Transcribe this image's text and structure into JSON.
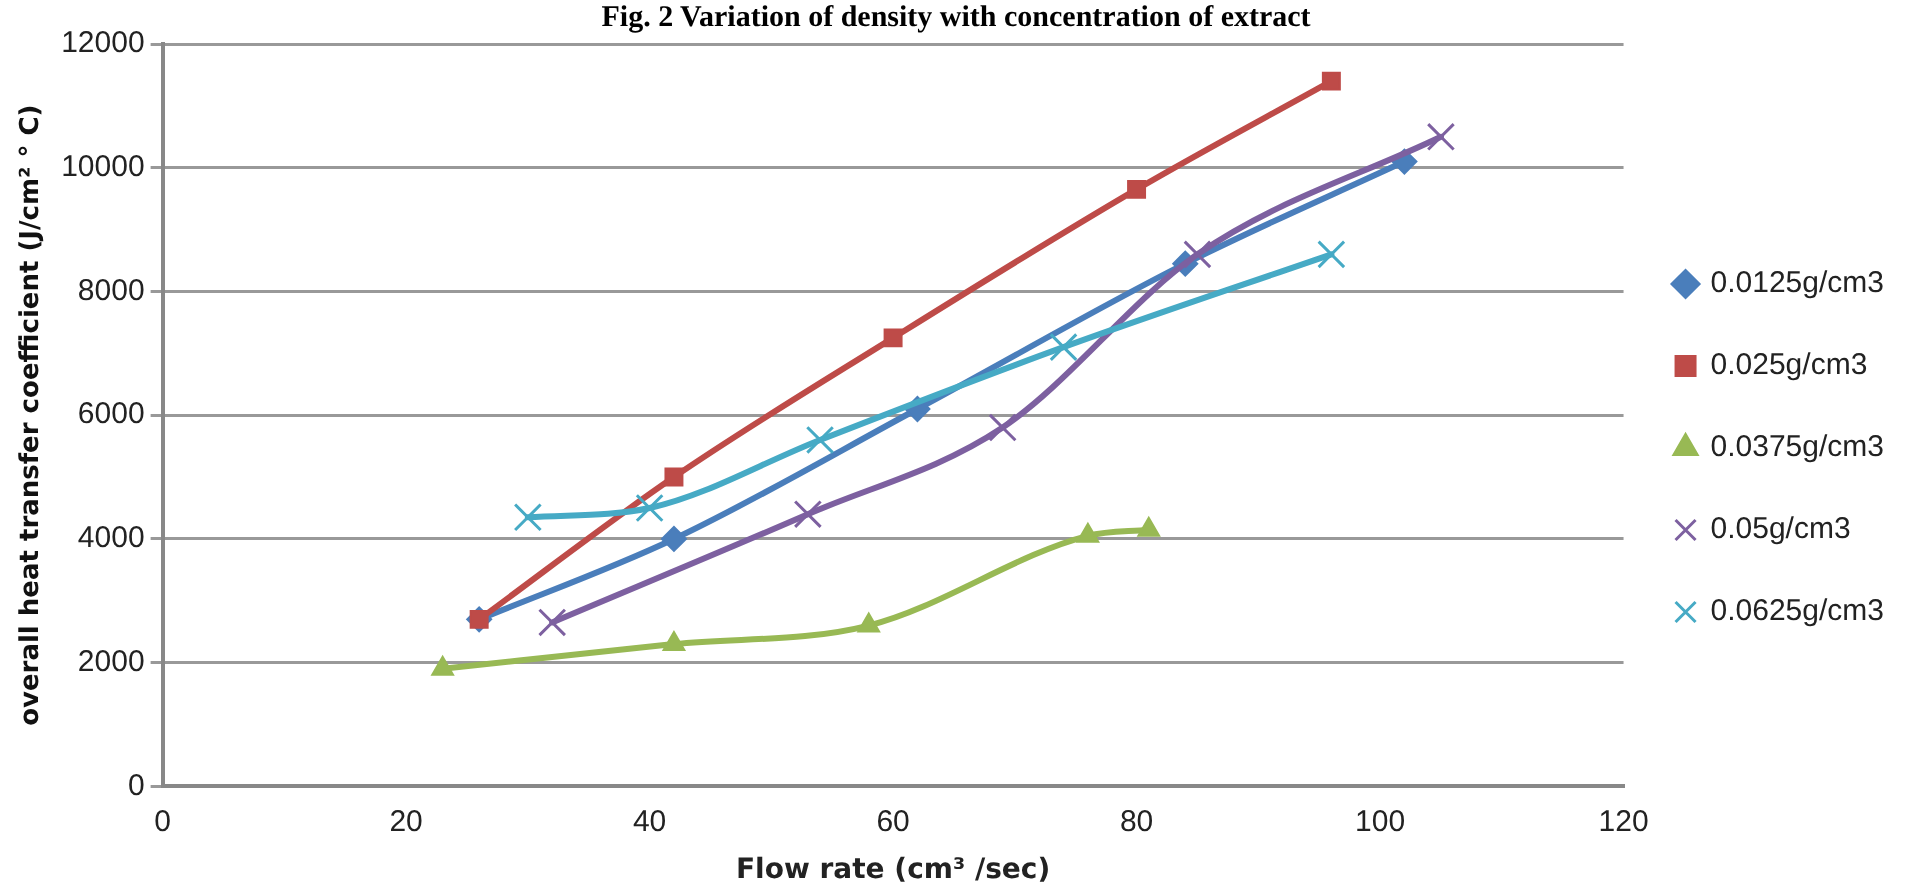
{
  "chart_data": {
    "type": "line",
    "title": "Fig. 2 Variation of density with concentration of extract",
    "xlabel": "Flow rate (cm³ /sec)",
    "ylabel": "overall heat transfer coefficient (J/cm² ° C)",
    "xlim": [
      0,
      120
    ],
    "xticks": [
      0,
      20,
      40,
      60,
      80,
      100,
      120
    ],
    "ylim": [
      0,
      12000
    ],
    "yticks": [
      0,
      2000,
      4000,
      6000,
      8000,
      10000,
      12000
    ],
    "grid": "y",
    "legend": "right",
    "line_style": "solid",
    "series": [
      {
        "name": "0.0125g/cm3",
        "color": "#4a7ebb",
        "marker": "diamond",
        "x": [
          26,
          42,
          62,
          84,
          102
        ],
        "values": [
          2700,
          4000,
          6100,
          8450,
          10100
        ]
      },
      {
        "name": "0.025g/cm3",
        "color": "#be4b48",
        "marker": "square",
        "x": [
          26,
          42,
          60,
          80,
          96
        ],
        "values": [
          2700,
          5000,
          7250,
          9650,
          11400
        ]
      },
      {
        "name": "0.0375g/cm3",
        "color": "#98b954",
        "marker": "triangle",
        "x": [
          23,
          42,
          58,
          76,
          81
        ],
        "values": [
          1900,
          2300,
          2600,
          4050,
          4150
        ]
      },
      {
        "name": "0.05g/cm3",
        "color": "#7d60a0",
        "marker": "cross",
        "x": [
          32,
          53,
          69,
          85,
          105
        ],
        "values": [
          2650,
          4400,
          5800,
          8600,
          10500
        ]
      },
      {
        "name": "0.0625g/cm3",
        "color": "#46aac5",
        "marker": "cross",
        "x": [
          30,
          40,
          54,
          74,
          96
        ],
        "values": [
          4350,
          4500,
          5600,
          7100,
          8600
        ]
      }
    ]
  }
}
